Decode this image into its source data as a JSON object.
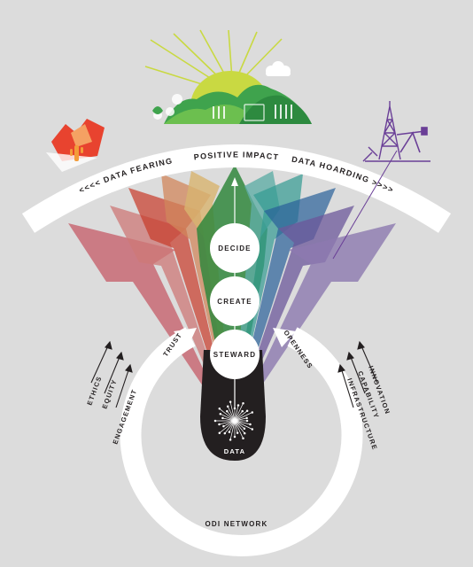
{
  "arc_labels": {
    "positive_impact": "POSITIVE IMPACT",
    "data_fearing": "<<<< DATA FEARING",
    "data_hoarding": "DATA HOARDING >>>>"
  },
  "stages": {
    "decide": "DECIDE",
    "create": "CREATE",
    "steward": "STEWARD"
  },
  "core": "DATA",
  "inputs": {
    "trust": "TRUST",
    "openness": "OPENNESS"
  },
  "left_factors": [
    "ETHICS",
    "EQUITY",
    "ENGAGEMENT"
  ],
  "right_factors": [
    "INNOVATION",
    "CAPABILITY",
    "INFRASTRUCTURE"
  ],
  "network": "ODI NETWORK",
  "colors": {
    "background": "#dcdcdc",
    "arc": "#ffffff",
    "ink": "#231f20",
    "sun": "#c9d942",
    "hills": "#3fa34d",
    "fearing": "#e8432f",
    "hoarding": "#6a3f97",
    "spectrum": [
      "#e35d6a",
      "#f08a7a",
      "#e8432f",
      "#f5a163",
      "#fbd181",
      "#3a9d47",
      "#3bb4a9",
      "#8bd5d3",
      "#2f6fb2",
      "#7fa9d8",
      "#6a4c9c",
      "#b49fd0"
    ]
  },
  "icons": [
    "sun-icon",
    "hills-icon",
    "cloud-icon",
    "desert-icon",
    "cactus-icon",
    "oil-rig-icon",
    "pump-jack-icon",
    "data-burst-icon"
  ]
}
